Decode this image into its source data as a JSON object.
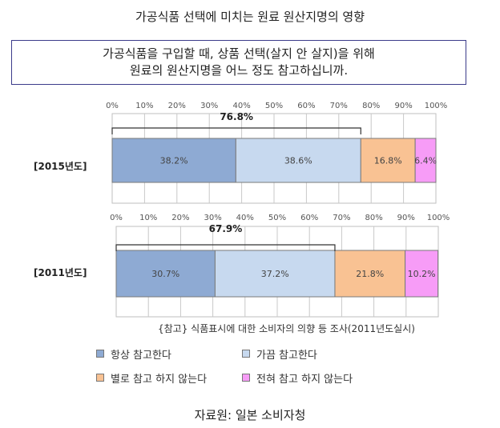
{
  "title": "가공식품 선택에 미치는 원료 원산지명의 영향",
  "question": {
    "line1": "가공식품을 구입할 때, 상품 선택(살지 안 살지)을 위해",
    "line2": "원료의 원산지명을 어느 정도 참고하십니까."
  },
  "note": "{참고} 식품표시에 대한 소비자의 의향 등 조사(2011년도실시)",
  "source": "자료원: 일본 소비자청",
  "chart_data": {
    "type": "bar",
    "orientation": "horizontal-stacked",
    "categories": [
      "[2015년도]",
      "[2011년도]"
    ],
    "x_ticks": [
      "0%",
      "10%",
      "20%",
      "30%",
      "40%",
      "50%",
      "60%",
      "70%",
      "80%",
      "90%",
      "100%"
    ],
    "xlim": [
      0,
      100
    ],
    "grid": true,
    "legend_position": "bottom",
    "series": [
      {
        "name": "항상 참고한다",
        "color": "#8eaad3",
        "values": [
          38.2,
          30.7
        ],
        "labels": [
          "38.2%",
          "30.7%"
        ]
      },
      {
        "name": "가끔 참고한다",
        "color": "#c7d9ef",
        "values": [
          38.6,
          37.2
        ],
        "labels": [
          "38.6%",
          "37.2%"
        ]
      },
      {
        "name": "별로 참고 하지 않는다",
        "color": "#f9c293",
        "values": [
          16.8,
          21.8
        ],
        "labels": [
          "16.8%",
          "21.8%"
        ]
      },
      {
        "name": "전혀 참고 하지 않는다",
        "color": "#f79cf7",
        "values": [
          6.4,
          10.2
        ],
        "labels": [
          "6.4%",
          "10.2%"
        ]
      }
    ],
    "annotations": [
      {
        "category": "[2015년도]",
        "text": "76.8%",
        "span": [
          0,
          76.8
        ]
      },
      {
        "category": "[2011년도]",
        "text": "67.9%",
        "span": [
          0,
          67.9
        ]
      }
    ]
  }
}
